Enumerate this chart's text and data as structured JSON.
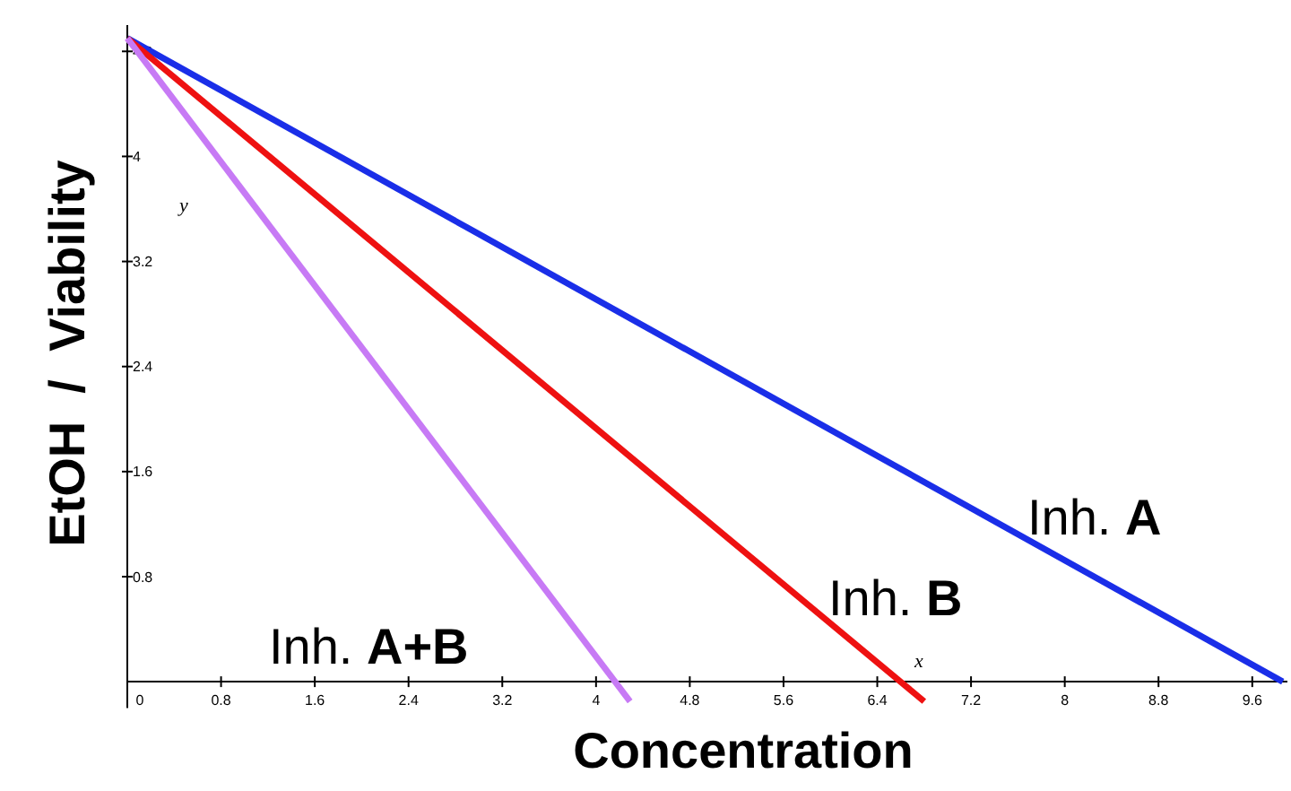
{
  "chart_data": {
    "type": "line",
    "xlabel": "Concentration",
    "ylabel": "EtOH  /  Viability",
    "annotations": [
      "x",
      "y"
    ],
    "xlim": [
      0,
      9.9
    ],
    "ylim": [
      -0.2,
      5
    ],
    "xticks": [
      0,
      0.8,
      1.6,
      2.4,
      3.2,
      4,
      4.8,
      5.6,
      6.4,
      7.2,
      8,
      8.8,
      9.6
    ],
    "yticks": [
      0.8,
      1.6,
      2.4,
      3.2,
      4,
      4.8
    ],
    "grid": false,
    "marker": "none",
    "line_style": "solid",
    "series": [
      {
        "name": "Inh. A",
        "color": "#1a2ee8",
        "x": [
          0,
          9.86
        ],
        "values": [
          4.9,
          0
        ]
      },
      {
        "name": "Inh. B",
        "color": "#ee1111",
        "x": [
          0,
          6.8
        ],
        "values": [
          4.9,
          -0.15
        ]
      },
      {
        "name": "Inh. A+B",
        "color": "#c77af5",
        "x": [
          0,
          4.29
        ],
        "values": [
          4.9,
          -0.15
        ]
      }
    ]
  }
}
